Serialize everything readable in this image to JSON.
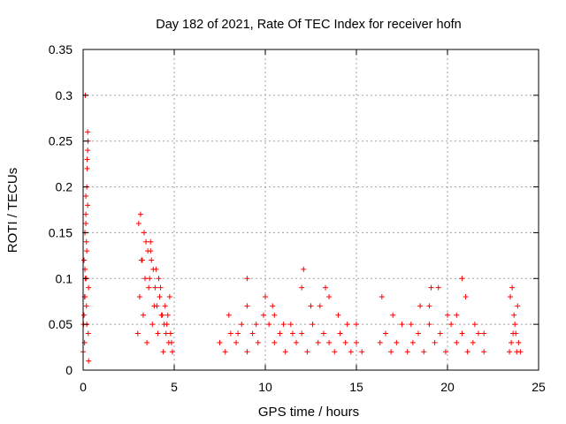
{
  "chart_data": {
    "type": "scatter",
    "title": "Day 182 of 2021, Rate Of TEC Index for receiver hofn",
    "xlabel": "GPS time / hours",
    "ylabel": "ROTI / TECUs",
    "xlim": [
      0,
      25
    ],
    "ylim": [
      0,
      0.35
    ],
    "x_ticks": [
      0,
      5,
      10,
      15,
      20,
      25
    ],
    "x_tick_labels": [
      "0",
      "5",
      "10",
      "15",
      "20",
      "25"
    ],
    "y_ticks": [
      0,
      0.05,
      0.1,
      0.15,
      0.2,
      0.25,
      0.3,
      0.35
    ],
    "y_tick_labels": [
      "0",
      "0.05",
      "0.1",
      "0.15",
      "0.2",
      "0.25",
      "0.3",
      "0.35"
    ],
    "grid": true,
    "marker": "plus",
    "marker_color": "#ff0000",
    "series": [
      {
        "x": [
          0.0,
          0.02,
          0.05,
          0.08,
          0.1,
          0.12,
          0.15,
          0.18,
          0.2,
          0.22,
          0.25,
          0.28,
          0.3,
          0.05,
          0.1,
          0.15,
          0.2,
          0.25,
          0.3,
          0.12,
          0.18,
          0.22,
          0.08,
          0.15,
          0.27,
          0.2,
          0.1,
          0.25,
          0.05,
          0.18,
          3.0,
          3.1,
          3.2,
          3.3,
          3.4,
          3.5,
          3.6,
          3.7,
          3.8,
          3.9,
          4.0,
          4.1,
          4.2,
          4.3,
          4.4,
          4.5,
          4.6,
          4.7,
          4.8,
          4.9,
          3.05,
          3.25,
          3.45,
          3.65,
          3.85,
          4.05,
          4.25,
          4.45,
          4.65,
          4.85,
          3.15,
          3.55,
          3.95,
          4.35,
          4.75,
          3.35,
          3.75,
          4.15,
          4.55,
          3.7,
          7.5,
          7.8,
          8.1,
          8.4,
          8.7,
          9.0,
          9.3,
          9.6,
          9.9,
          10.2,
          10.5,
          10.8,
          11.1,
          11.4,
          11.7,
          12.0,
          12.3,
          12.6,
          12.9,
          13.2,
          13.5,
          13.8,
          14.1,
          14.4,
          14.7,
          15.0,
          15.3,
          8.0,
          9.0,
          10.0,
          11.0,
          12.0,
          13.0,
          14.0,
          15.0,
          8.5,
          9.5,
          10.5,
          11.5,
          12.5,
          13.5,
          14.5,
          9.0,
          12.1,
          13.3,
          10.4,
          16.3,
          16.6,
          16.9,
          17.2,
          17.5,
          17.8,
          18.1,
          18.4,
          18.7,
          19.0,
          19.3,
          19.6,
          19.9,
          20.2,
          20.5,
          20.8,
          21.1,
          21.4,
          21.7,
          22.0,
          17.0,
          18.0,
          19.0,
          20.0,
          21.0,
          22.0,
          18.5,
          19.5,
          20.5,
          21.5,
          20.8,
          16.4,
          19.1,
          23.4,
          23.5,
          23.6,
          23.7,
          23.8,
          23.9,
          24.0,
          23.45,
          23.65,
          23.85,
          23.55,
          23.75
        ],
        "y": [
          0.02,
          0.05,
          0.12,
          0.08,
          0.15,
          0.1,
          0.19,
          0.07,
          0.13,
          0.22,
          0.26,
          0.04,
          0.01,
          0.06,
          0.11,
          0.17,
          0.2,
          0.24,
          0.09,
          0.3,
          0.14,
          0.23,
          0.03,
          0.16,
          0.25,
          0.05,
          0.08,
          0.18,
          0.12,
          0.1,
          0.04,
          0.08,
          0.12,
          0.06,
          0.1,
          0.03,
          0.09,
          0.13,
          0.05,
          0.07,
          0.11,
          0.04,
          0.08,
          0.06,
          0.02,
          0.07,
          0.05,
          0.03,
          0.04,
          0.02,
          0.16,
          0.12,
          0.14,
          0.1,
          0.11,
          0.07,
          0.09,
          0.05,
          0.06,
          0.03,
          0.17,
          0.13,
          0.09,
          0.06,
          0.08,
          0.15,
          0.12,
          0.1,
          0.04,
          0.14,
          0.03,
          0.02,
          0.04,
          0.03,
          0.05,
          0.02,
          0.04,
          0.03,
          0.06,
          0.05,
          0.03,
          0.04,
          0.02,
          0.05,
          0.03,
          0.04,
          0.02,
          0.05,
          0.03,
          0.04,
          0.03,
          0.02,
          0.04,
          0.03,
          0.02,
          0.03,
          0.02,
          0.06,
          0.07,
          0.08,
          0.05,
          0.09,
          0.07,
          0.06,
          0.05,
          0.04,
          0.05,
          0.06,
          0.04,
          0.07,
          0.08,
          0.05,
          0.1,
          0.11,
          0.09,
          0.07,
          0.03,
          0.04,
          0.02,
          0.03,
          0.05,
          0.02,
          0.03,
          0.04,
          0.02,
          0.05,
          0.03,
          0.04,
          0.02,
          0.05,
          0.03,
          0.04,
          0.02,
          0.03,
          0.04,
          0.02,
          0.06,
          0.05,
          0.07,
          0.06,
          0.08,
          0.04,
          0.07,
          0.09,
          0.06,
          0.05,
          0.1,
          0.08,
          0.09,
          0.02,
          0.03,
          0.04,
          0.05,
          0.02,
          0.03,
          0.02,
          0.08,
          0.06,
          0.07,
          0.09,
          0.04
        ]
      }
    ]
  }
}
